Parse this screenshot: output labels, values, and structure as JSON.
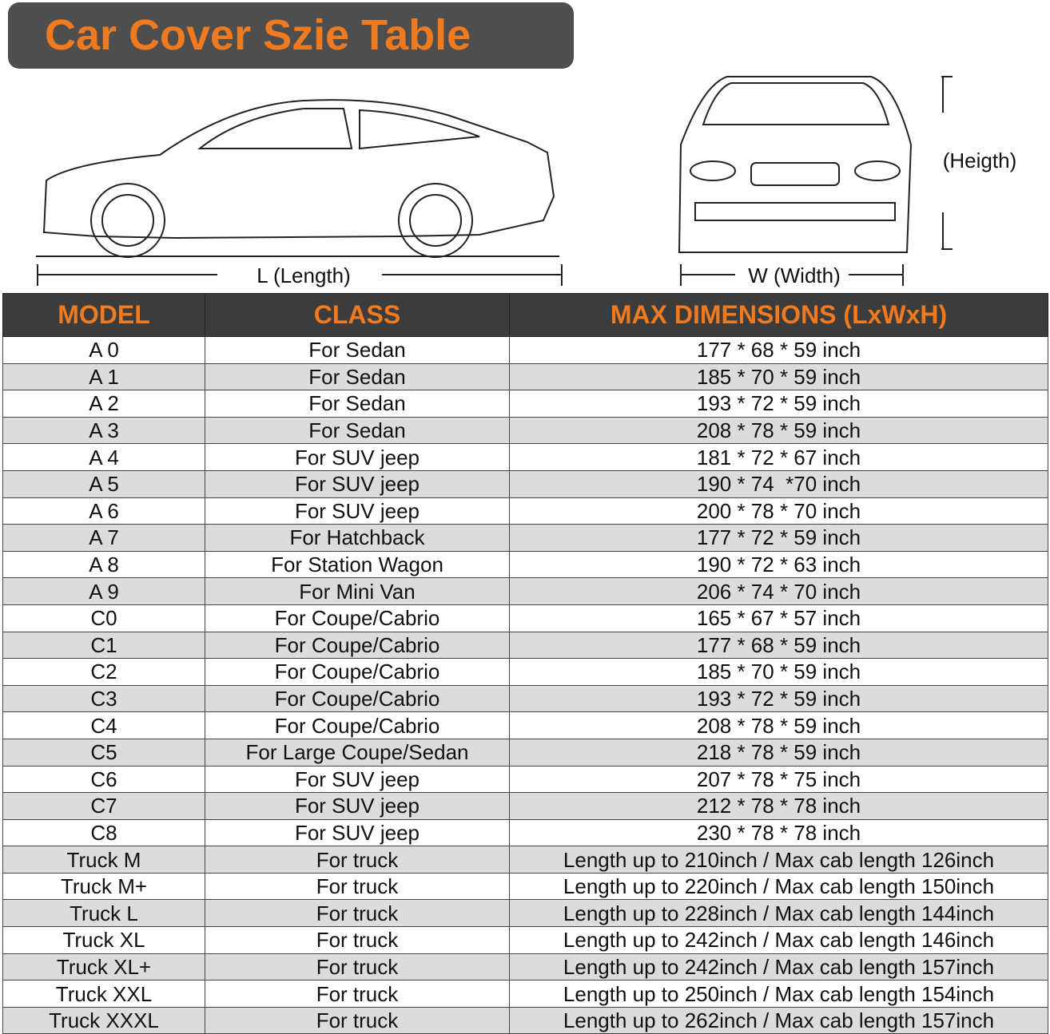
{
  "header": {
    "title": "Car Cover Szie Table"
  },
  "diagram": {
    "length_label": "L (Length)",
    "width_label": "W (Width)",
    "height_label": "(Heigth)"
  },
  "table": {
    "columns": [
      "MODEL",
      "CLASS",
      "MAX DIMENSIONS (LxWxH)"
    ],
    "rows": [
      [
        "A 0",
        "For Sedan",
        "177 * 68 * 59 inch"
      ],
      [
        "A 1",
        "For Sedan",
        "185 * 70 * 59 inch"
      ],
      [
        "A 2",
        "For Sedan",
        "193 * 72 * 59 inch"
      ],
      [
        "A 3",
        "For Sedan",
        "208 * 78 * 59 inch"
      ],
      [
        "A 4",
        "For SUV jeep",
        "181 * 72 * 67 inch"
      ],
      [
        "A 5",
        "For SUV jeep",
        "190 * 74  *70 inch"
      ],
      [
        "A 6",
        "For SUV jeep",
        "200 * 78 * 70 inch"
      ],
      [
        "A 7",
        "For Hatchback",
        "177 * 72 * 59 inch"
      ],
      [
        "A 8",
        "For Station Wagon",
        "190 * 72 * 63 inch"
      ],
      [
        "A 9",
        "For Mini Van",
        "206 * 74 * 70 inch"
      ],
      [
        "C0",
        "For Coupe/Cabrio",
        "165 * 67 * 57 inch"
      ],
      [
        "C1",
        "For Coupe/Cabrio",
        "177 * 68 * 59 inch"
      ],
      [
        "C2",
        "For Coupe/Cabrio",
        "185 * 70 * 59 inch"
      ],
      [
        "C3",
        "For Coupe/Cabrio",
        "193 * 72 * 59 inch"
      ],
      [
        "C4",
        "For Coupe/Cabrio",
        "208 * 78 * 59 inch"
      ],
      [
        "C5",
        "For Large Coupe/Sedan",
        "218 * 78 * 59 inch"
      ],
      [
        "C6",
        "For SUV jeep",
        "207 * 78 * 75 inch"
      ],
      [
        "C7",
        "For SUV jeep",
        "212 * 78 * 78 inch"
      ],
      [
        "C8",
        "For SUV jeep",
        "230 * 78 * 78 inch"
      ],
      [
        "Truck M",
        "For truck",
        "Length up to 210inch / Max cab length 126inch"
      ],
      [
        "Truck M+",
        "For truck",
        "Length up to 220inch / Max cab length 150inch"
      ],
      [
        "Truck L",
        "For truck",
        "Length up to 228inch / Max cab length 144inch"
      ],
      [
        "Truck XL",
        "For truck",
        "Length up to 242inch / Max cab length 146inch"
      ],
      [
        "Truck XL+",
        "For truck",
        "Length up to 242inch / Max cab length 157inch"
      ],
      [
        "Truck XXL",
        "For truck",
        "Length up to 250inch / Max cab length 154inch"
      ],
      [
        "Truck XXXL",
        "For truck",
        "Length up to 262inch / Max cab length 157inch"
      ]
    ]
  }
}
